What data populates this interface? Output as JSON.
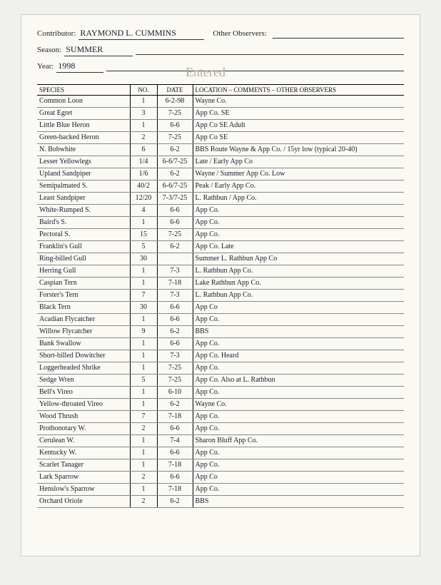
{
  "header": {
    "contributor_label": "Contributor:",
    "contributor": "Raymond L. Cummins",
    "other_obs_label": "Other Observers:",
    "season_label": "Season:",
    "season": "Summer",
    "year_label": "Year:",
    "year": "1998",
    "entered": "Entered"
  },
  "columns": {
    "species": "SPECIES",
    "no": "NO.",
    "date": "DATE",
    "loc": "LOCATION – COMMENTS –  OTHER OBSERVERS"
  },
  "rows": [
    {
      "sp": "Common Loon",
      "no": "1",
      "dt": "6-2-98",
      "lc": "Wayne Co."
    },
    {
      "sp": "Great Egret",
      "no": "3",
      "dt": "7-25",
      "lc": "App Co. SE"
    },
    {
      "sp": "Little Blue Heron",
      "no": "1",
      "dt": "6-6",
      "lc": "App Co SE   Adult"
    },
    {
      "sp": "Green-backed Heron",
      "no": "2",
      "dt": "7-25",
      "lc": "App Co SE"
    },
    {
      "sp": "N. Bobwhite",
      "no": "6",
      "dt": "6-2",
      "lc": "BBS Route Wayne & App Co. / 15yr low (typical 20-40)"
    },
    {
      "sp": "Lesser Yellowlegs",
      "no": "1/4",
      "dt": "6-6/7-25",
      "lc": "Late / Early  App Co"
    },
    {
      "sp": "Upland Sandpiper",
      "no": "1/6",
      "dt": "6-2",
      "lc": "Wayne / Summer App Co.  Low"
    },
    {
      "sp": "Semipalmated S.",
      "no": "40/2",
      "dt": "6-6/7-25",
      "lc": "Peak / Early  App Co."
    },
    {
      "sp": "Least Sandpiper",
      "no": "12/20",
      "dt": "7-3/7-25",
      "lc": "L. Rathbun / App Co."
    },
    {
      "sp": "White-Rumped S.",
      "no": "4",
      "dt": "6-6",
      "lc": "App Co."
    },
    {
      "sp": "Baird's S.",
      "no": "1",
      "dt": "6-6",
      "lc": "App Co."
    },
    {
      "sp": "Pectoral S.",
      "no": "15",
      "dt": "7-25",
      "lc": "App Co."
    },
    {
      "sp": "Franklin's Gull",
      "no": "5",
      "dt": "6-2",
      "lc": "App Co.  Late"
    },
    {
      "sp": "Ring-billed Gull",
      "no": "30",
      "dt": "",
      "lc": "Summer L. Rathbun  App Co"
    },
    {
      "sp": "Herring Gull",
      "no": "1",
      "dt": "7-3",
      "lc": "L. Rathbun  App Co."
    },
    {
      "sp": "Caspian Tern",
      "no": "1",
      "dt": "7-18",
      "lc": "Lake Rathbun  App Co."
    },
    {
      "sp": "Forster's Tern",
      "no": "7",
      "dt": "7-3",
      "lc": "L. Rathbun  App Co."
    },
    {
      "sp": "Black Tern",
      "no": "30",
      "dt": "6-6",
      "lc": "App Co"
    },
    {
      "sp": "Acadian Flycatcher",
      "no": "1",
      "dt": "6-6",
      "lc": "App Co."
    },
    {
      "sp": "Willow Flycatcher",
      "no": "9",
      "dt": "6-2",
      "lc": "BBS"
    },
    {
      "sp": "Bank Swallow",
      "no": "1",
      "dt": "6-6",
      "lc": "App Co."
    },
    {
      "sp": "Short-billed Dowitcher",
      "no": "1",
      "dt": "7-3",
      "lc": "App Co.    Heard"
    },
    {
      "sp": "Loggerheaded Shrike",
      "no": "1",
      "dt": "7-25",
      "lc": "App Co."
    },
    {
      "sp": "Sedge Wren",
      "no": "5",
      "dt": "7-25",
      "lc": "App Co.   Also at L. Rathbun"
    },
    {
      "sp": "Bell's Vireo",
      "no": "1",
      "dt": "6-10",
      "lc": "App Co."
    },
    {
      "sp": "Yellow-throated Vireo",
      "no": "1",
      "dt": "6-2",
      "lc": "Wayne Co."
    },
    {
      "sp": "Wood Thrush",
      "no": "7",
      "dt": "7-18",
      "lc": "App Co."
    },
    {
      "sp": "Prothonotary W.",
      "no": "2",
      "dt": "6-6",
      "lc": "App Co."
    },
    {
      "sp": "Cerulean W.",
      "no": "1",
      "dt": "7-4",
      "lc": "Sharon Bluff  App Co."
    },
    {
      "sp": "Kentucky W.",
      "no": "1",
      "dt": "6-6",
      "lc": "App Co."
    },
    {
      "sp": "Scarlet Tanager",
      "no": "1",
      "dt": "7-18",
      "lc": "App Co."
    },
    {
      "sp": "Lark Sparrow",
      "no": "2",
      "dt": "6-6",
      "lc": "App Co"
    },
    {
      "sp": "Henslow's Sparrow",
      "no": "1",
      "dt": "7-18",
      "lc": "App Co."
    },
    {
      "sp": "Orchard Oriole",
      "no": "2",
      "dt": "6-2",
      "lc": "BBS"
    }
  ]
}
